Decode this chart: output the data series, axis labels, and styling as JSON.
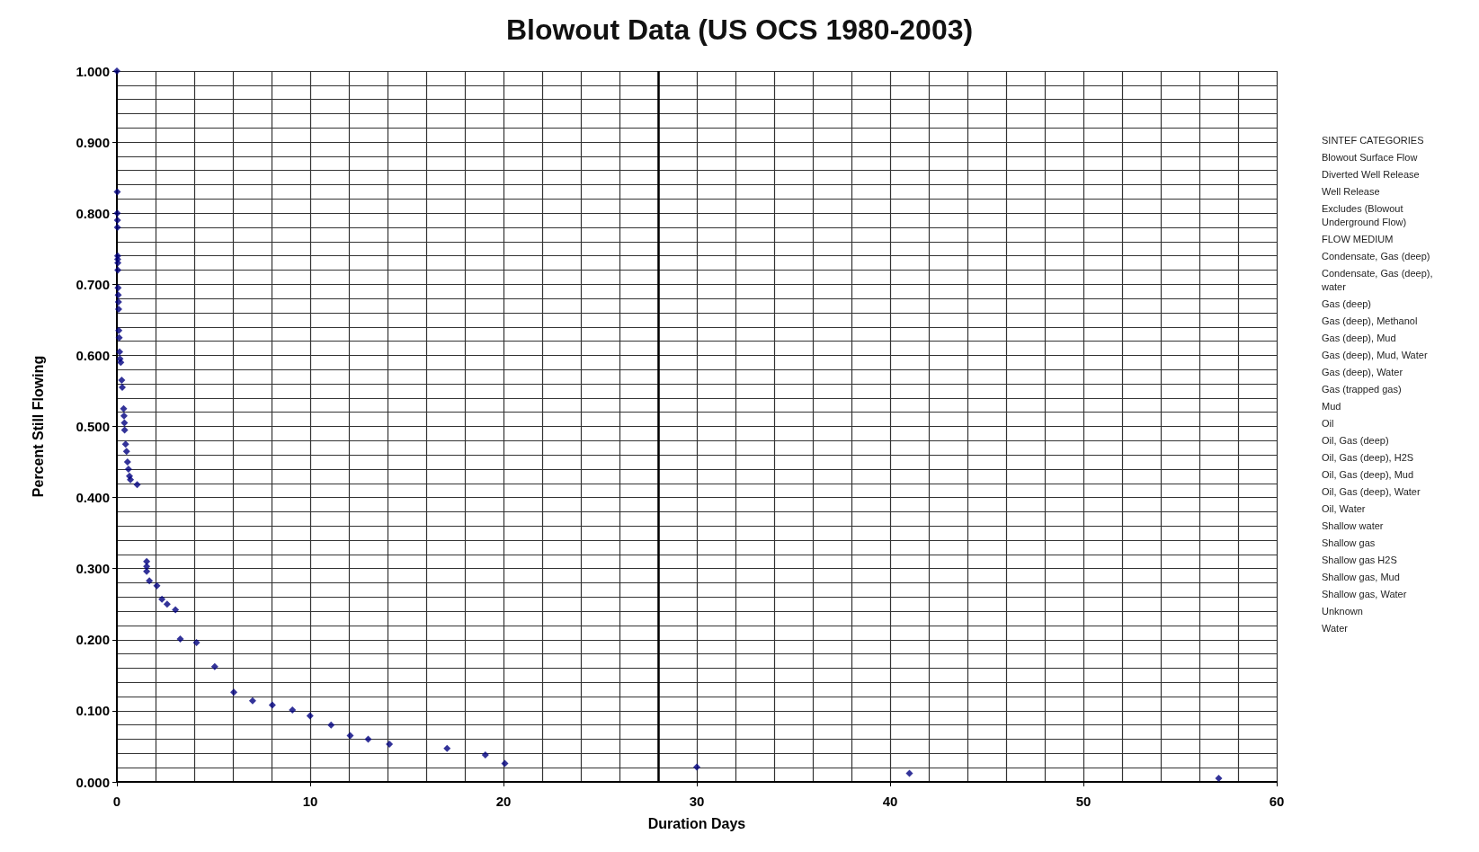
{
  "chart_data": {
    "type": "scatter",
    "title": "Blowout Data (US OCS 1980-2003)",
    "xlabel": "Duration Days",
    "ylabel": "Percent Still Flowing",
    "marker": "diamond",
    "grid": true,
    "xlim": [
      0,
      60
    ],
    "xticks": [
      0,
      10,
      20,
      30,
      40,
      50,
      60
    ],
    "ylim": [
      0,
      1
    ],
    "yticks": [
      {
        "value": 0,
        "label": "0.000"
      },
      {
        "value": 0.1,
        "label": "0.100"
      },
      {
        "value": 0.2,
        "label": "0.200"
      },
      {
        "value": 0.3,
        "label": "0.300"
      },
      {
        "value": 0.4,
        "label": "0.400"
      },
      {
        "value": 0.5,
        "label": "0.500"
      },
      {
        "value": 0.6,
        "label": "0.600"
      },
      {
        "value": 0.7,
        "label": "0.700"
      },
      {
        "value": 0.8,
        "label": "0.800"
      },
      {
        "value": 0.9,
        "label": "0.900"
      },
      {
        "value": 1,
        "label": "1.000"
      }
    ],
    "ref_lines": [
      {
        "axis": "x",
        "value": 28,
        "label": null,
        "color": "#000000"
      }
    ],
    "series": [
      {
        "color": "#000080",
        "x": [
          0,
          0.02,
          0.02,
          0.03,
          0.03,
          0.04,
          0.04,
          0.05,
          0.05,
          0.06,
          0.07,
          0.08,
          0.09,
          0.1,
          0.12,
          0.14,
          0.16,
          0.2,
          0.25,
          0.28,
          0.35,
          0.37,
          0.39,
          0.4,
          0.45,
          0.5,
          0.55,
          0.6,
          0.65,
          0.7,
          1.05,
          1.54,
          1.54,
          1.54,
          1.68,
          2.07,
          2.33,
          2.6,
          3.03,
          3.28,
          4.12,
          5.06,
          6.05,
          7.02,
          8.04,
          9.08,
          9.99,
          11.08,
          12.07,
          13.0,
          14.1,
          17.08,
          19.06,
          20.07,
          30,
          41,
          57
        ],
        "values": [
          1.0,
          0.83,
          0.8,
          0.79,
          0.78,
          0.74,
          0.735,
          0.73,
          0.72,
          0.695,
          0.685,
          0.675,
          0.665,
          0.635,
          0.625,
          0.605,
          0.595,
          0.59,
          0.565,
          0.555,
          0.525,
          0.515,
          0.505,
          0.495,
          0.475,
          0.465,
          0.45,
          0.44,
          0.43,
          0.425,
          0.418,
          0.31,
          0.303,
          0.296,
          0.283,
          0.276,
          0.257,
          0.25,
          0.242,
          0.201,
          0.196,
          0.162,
          0.126,
          0.114,
          0.108,
          0.101,
          0.093,
          0.08,
          0.065,
          0.06,
          0.053,
          0.047,
          0.038,
          0.026,
          0.021,
          0.012,
          0.005
        ]
      }
    ],
    "annotations": [
      "SINTEF CATEGORIES",
      "Blowout Surface Flow",
      "Diverted Well Release",
      "Well Release",
      "Excludes (Blowout Underground Flow)",
      "FLOW MEDIUM",
      "Condensate, Gas (deep)",
      "Condensate, Gas (deep), water",
      "Gas (deep)",
      "Gas (deep), Methanol",
      "Gas (deep), Mud",
      "Gas (deep), Mud, Water",
      "Gas (deep), Water",
      "Gas (trapped gas)",
      "Mud",
      "Oil",
      "Oil, Gas (deep)",
      "Oil, Gas (deep), H2S",
      "Oil, Gas (deep), Mud",
      "Oil, Gas (deep), Water",
      "Oil, Water",
      "Shallow water",
      "Shallow gas",
      "Shallow gas H2S",
      "Shallow gas, Mud",
      "Shallow gas, Water",
      "Unknown",
      "Water"
    ]
  }
}
